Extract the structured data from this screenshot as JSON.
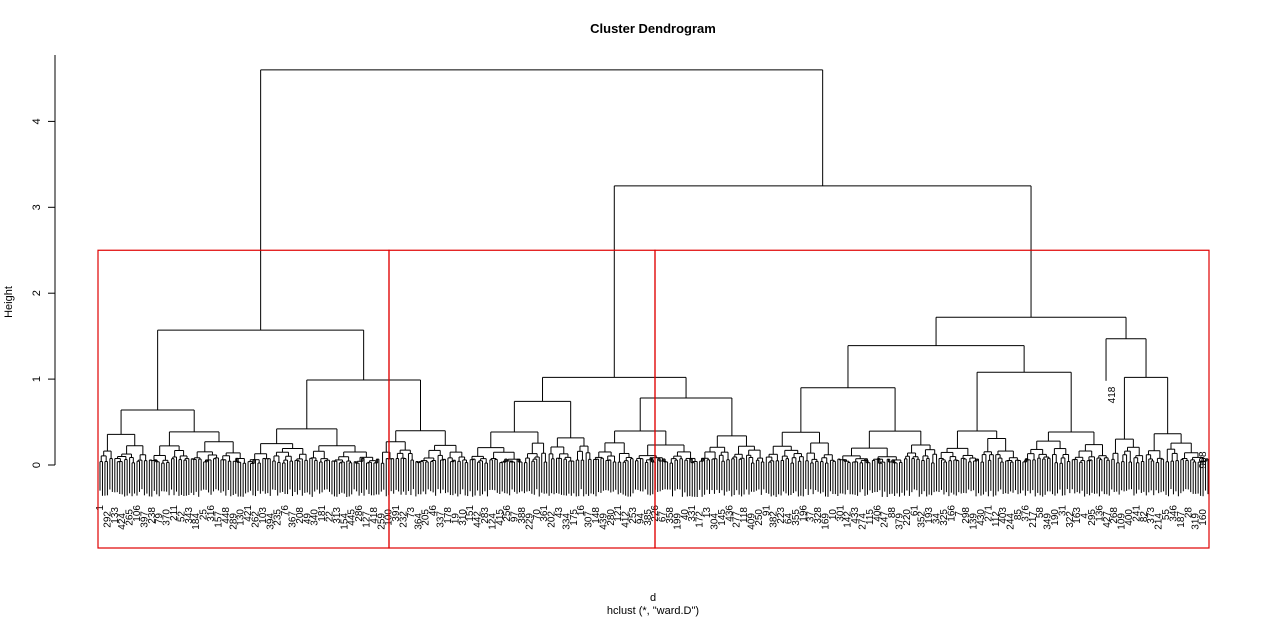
{
  "chart_data": {
    "type": "dendrogram",
    "title": "Cluster Dendrogram",
    "xlabel": "d",
    "sub_title": "hclust (*, \"ward.D\")",
    "ylabel": "Height",
    "y_ticks": [
      0,
      1,
      2,
      3,
      4
    ],
    "ylim": [
      0,
      4.6
    ],
    "leaf_count": 450,
    "merges": [
      {
        "height": 4.6,
        "description": "root: left group joins right group"
      },
      {
        "height": 3.25,
        "description": "middle group joins right group"
      },
      {
        "height": 1.57,
        "description": "top merge of left group"
      },
      {
        "height": 1.02,
        "description": "top merge of middle group"
      },
      {
        "height": 1.72,
        "description": "top merge of right group"
      }
    ],
    "cut": {
      "height": 2.5,
      "color": "#e00000",
      "clusters": 3
    },
    "visible_leaf_labels": [
      "418",
      "98",
      "96"
    ]
  }
}
